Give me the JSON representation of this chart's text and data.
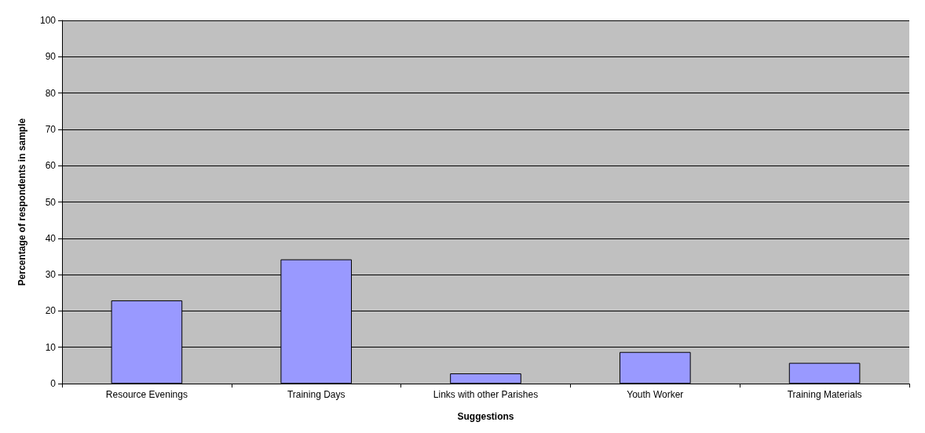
{
  "chart_data": {
    "type": "bar",
    "xlabel": "Suggestions",
    "ylabel": "Percentage of respondents in sample",
    "categories": [
      "Resource Evenings",
      "Training Days",
      "Links with other Parishes",
      "Youth Worker",
      "Training Materials"
    ],
    "values": [
      22.9,
      34.2,
      2.8,
      8.7,
      5.7
    ],
    "color": "#9999ff",
    "ylim": [
      0,
      100
    ],
    "yticks": [
      0,
      10,
      20,
      30,
      40,
      50,
      60,
      70,
      80,
      90,
      100
    ],
    "grid": "y"
  }
}
